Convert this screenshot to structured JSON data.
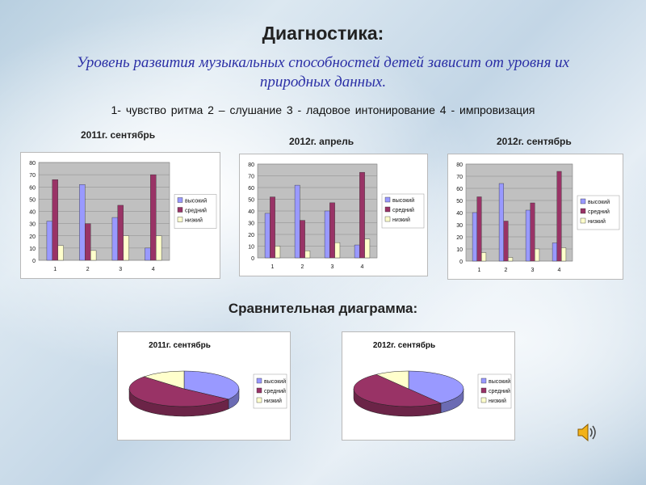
{
  "header": {
    "title": "Диагностика:",
    "subtitle": "Уровень развития музыкальных способностей детей зависит от уровня их природных данных.",
    "criteria": "1- чувство ритма   2 – слушание   3 - ладовое интонирование   4 - импровизация"
  },
  "comparison_title": "Сравнительная диаграмма:",
  "colors": {
    "high": "#9999ff",
    "medium": "#993366",
    "low": "#ffffcc"
  },
  "icons": {
    "speaker": "speaker-icon"
  },
  "chart_data": [
    {
      "type": "bar",
      "title": "2011г. сентябрь",
      "categories": [
        "1",
        "2",
        "3",
        "4"
      ],
      "series": [
        {
          "name": "высокий",
          "values": [
            32,
            62,
            35,
            10
          ]
        },
        {
          "name": "средний",
          "values": [
            66,
            30,
            45,
            70
          ]
        },
        {
          "name": "низкий",
          "values": [
            12,
            8,
            20,
            20
          ]
        }
      ],
      "ylim": [
        0,
        80
      ],
      "yticks": [
        0,
        10,
        20,
        30,
        40,
        50,
        60,
        70,
        80
      ],
      "legend": "right"
    },
    {
      "type": "bar",
      "title": "2012г. апрель",
      "categories": [
        "1",
        "2",
        "3",
        "4"
      ],
      "series": [
        {
          "name": "высокий",
          "values": [
            38,
            62,
            40,
            11
          ]
        },
        {
          "name": "средний",
          "values": [
            52,
            32,
            47,
            73
          ]
        },
        {
          "name": "низкий",
          "values": [
            10,
            6,
            13,
            16
          ]
        }
      ],
      "ylim": [
        0,
        80
      ],
      "yticks": [
        0,
        10,
        20,
        30,
        40,
        50,
        60,
        70,
        80
      ],
      "legend": "right"
    },
    {
      "type": "bar",
      "title": "2012г. сентябрь",
      "categories": [
        "1",
        "2",
        "3",
        "4"
      ],
      "series": [
        {
          "name": "высокий",
          "values": [
            40,
            64,
            42,
            15
          ]
        },
        {
          "name": "средний",
          "values": [
            53,
            33,
            48,
            74
          ]
        },
        {
          "name": "низкий",
          "values": [
            7,
            3,
            10,
            11
          ]
        }
      ],
      "ylim": [
        0,
        80
      ],
      "yticks": [
        0,
        10,
        20,
        30,
        40,
        50,
        60,
        70,
        80
      ],
      "legend": "right"
    },
    {
      "type": "pie",
      "title": "2011г. сентябрь",
      "labels": [
        "высокий",
        "средний",
        "низкий"
      ],
      "values": [
        35,
        52,
        13
      ],
      "legend": "right"
    },
    {
      "type": "pie",
      "title": "2012г. сентябрь",
      "labels": [
        "высокий",
        "средний",
        "низкий"
      ],
      "values": [
        40,
        50,
        10
      ],
      "legend": "right"
    }
  ]
}
